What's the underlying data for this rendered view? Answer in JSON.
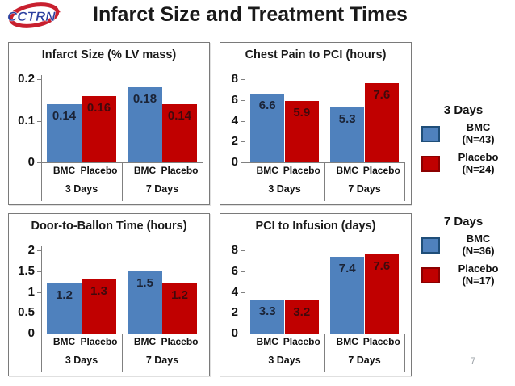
{
  "header": {
    "logo_text": "CCTRN",
    "title": "Infarct Size and Treatment Times"
  },
  "page_number": "7",
  "colors": {
    "bar_blue": "#4f81bd",
    "bar_red": "#c00000",
    "blue_swatch_border": "#1f4e79",
    "red_swatch_border": "#8c0000",
    "value_label_on_blue": "#1b2437",
    "value_label_on_red": "#42090c",
    "axis_gray": "#808080",
    "logo_blue": "#2b3f9f",
    "logo_red": "#c8202f"
  },
  "chart_data": [
    {
      "type": "bar",
      "title": "Infarct Size (% LV mass)",
      "ylim": [
        0,
        0.2
      ],
      "yticks": [
        "0",
        "0.1",
        "0.2"
      ],
      "ytick_values": [
        0,
        0.1,
        0.2
      ],
      "groups": [
        "3 Days",
        "7 Days"
      ],
      "categories": [
        "BMC",
        "Placebo",
        "BMC",
        "Placebo"
      ],
      "series_of_bar": [
        "BMC",
        "Placebo",
        "BMC",
        "Placebo"
      ],
      "values": [
        0.14,
        0.16,
        0.18,
        0.14
      ],
      "labels": [
        "0.14",
        "0.16",
        "0.18",
        "0.14"
      ],
      "grid": false,
      "legend_position": "outside-right"
    },
    {
      "type": "bar",
      "title": "Chest Pain to PCI (hours)",
      "ylim": [
        0,
        8
      ],
      "yticks": [
        "0",
        "2",
        "4",
        "6",
        "8"
      ],
      "ytick_values": [
        0,
        2,
        4,
        6,
        8
      ],
      "groups": [
        "3 Days",
        "7 Days"
      ],
      "categories": [
        "BMC",
        "Placebo",
        "BMC",
        "Placebo"
      ],
      "series_of_bar": [
        "BMC",
        "Placebo",
        "BMC",
        "Placebo"
      ],
      "values": [
        6.6,
        5.9,
        5.3,
        7.6
      ],
      "labels": [
        "6.6",
        "5.9",
        "5.3",
        "7.6"
      ],
      "grid": false,
      "legend_position": "outside-right"
    },
    {
      "type": "bar",
      "title": "Door-to-Ballon Time (hours)",
      "ylim": [
        0,
        2
      ],
      "yticks": [
        "0",
        "0.5",
        "1",
        "1.5",
        "2"
      ],
      "ytick_values": [
        0,
        0.5,
        1,
        1.5,
        2
      ],
      "groups": [
        "3 Days",
        "7 Days"
      ],
      "categories": [
        "BMC",
        "Placebo",
        "BMC",
        "Placebo"
      ],
      "series_of_bar": [
        "BMC",
        "Placebo",
        "BMC",
        "Placebo"
      ],
      "values": [
        1.2,
        1.3,
        1.5,
        1.2
      ],
      "labels": [
        "1.2",
        "1.3",
        "1.5",
        "1.2"
      ],
      "grid": false,
      "legend_position": "outside-right"
    },
    {
      "type": "bar",
      "title": "PCI to Infusion (days)",
      "ylim": [
        0,
        8
      ],
      "yticks": [
        "0",
        "2",
        "4",
        "6",
        "8"
      ],
      "ytick_values": [
        0,
        2,
        4,
        6,
        8
      ],
      "groups": [
        "3 Days",
        "7 Days"
      ],
      "categories": [
        "BMC",
        "Placebo",
        "BMC",
        "Placebo"
      ],
      "series_of_bar": [
        "BMC",
        "Placebo",
        "BMC",
        "Placebo"
      ],
      "values": [
        3.3,
        3.2,
        7.4,
        7.6
      ],
      "labels": [
        "3.3",
        "3.2",
        "7.4",
        "7.6"
      ],
      "grid": false,
      "legend_position": "outside-right"
    }
  ],
  "legend": {
    "sections": [
      {
        "title": "3 Days",
        "items": [
          {
            "label": "BMC",
            "n": "(N=43)",
            "color": "#4f81bd",
            "border": "#1f4e79"
          },
          {
            "label": "Placebo",
            "n": "(N=24)",
            "color": "#c00000",
            "border": "#8c0000"
          }
        ]
      },
      {
        "title": "7 Days",
        "items": [
          {
            "label": "BMC",
            "n": "(N=36)",
            "color": "#4f81bd",
            "border": "#1f4e79"
          },
          {
            "label": "Placebo",
            "n": "(N=17)",
            "color": "#c00000",
            "border": "#8c0000"
          }
        ]
      }
    ]
  }
}
